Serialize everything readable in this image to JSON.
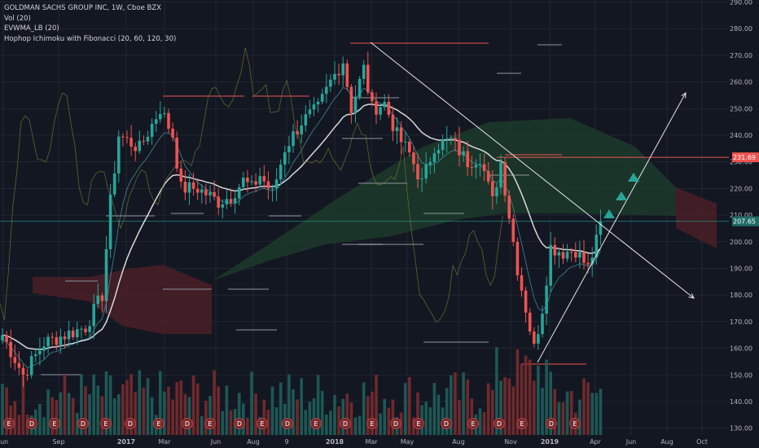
{
  "legend": {
    "symbol": "GOLDMAN SACHS GROUP INC, 1W, Cboe BZX",
    "volume": "Vol (20)",
    "evwma": "EVWMA_LB (20)",
    "ichimoku": "Hophop Ichimoku with Fibonacci (20, 60, 120, 30)"
  },
  "colors": {
    "background": "#131722",
    "grid": "#2a2e39",
    "up": "#26a69a",
    "down": "#ef5350",
    "volume_up": "#1f5f5a",
    "volume_down": "#7a2b2e",
    "evwma": "#d9d9d9",
    "kumo_bull": "#1d3a2a",
    "kumo_bear": "#4a1f26",
    "trendline": "#e6e6e6",
    "signal": "#26a69a",
    "price_badge": "#1e6b66",
    "resistance_badge": "#ef5350"
  },
  "chart_data": {
    "type": "candlestick",
    "y_axis": {
      "min": 125,
      "max": 292,
      "ticks": [
        130,
        140,
        150,
        160,
        170,
        180,
        190,
        200,
        210,
        220,
        230,
        240,
        250,
        260,
        270,
        280,
        290
      ]
    },
    "x_axis": {
      "labels": [
        "Jun",
        "Sep",
        "2017",
        "Mar",
        "Jun",
        "Aug",
        "9",
        "2018",
        "Mar",
        "May",
        "Aug",
        "Nov",
        "2019",
        "Apr",
        "Jun",
        "Aug",
        "Oct"
      ]
    },
    "price_labels": [
      {
        "text": "231.69",
        "value": 231.69,
        "type": "resistance"
      },
      {
        "text": "207.65",
        "value": 207.65,
        "type": "last"
      }
    ],
    "earnings_markers": [
      "E",
      "D",
      "E",
      "D",
      "E",
      "D",
      "E",
      "D",
      "E",
      "D",
      "E",
      "D",
      "E",
      "D",
      "E",
      "D",
      "E",
      "D",
      "E",
      "D",
      "E",
      "D",
      "E"
    ],
    "close_anchors": [
      {
        "week": 0,
        "close": 165
      },
      {
        "week": 5,
        "close": 150
      },
      {
        "week": 10,
        "close": 162
      },
      {
        "week": 15,
        "close": 165
      },
      {
        "week": 20,
        "close": 168
      },
      {
        "week": 24,
        "close": 180
      },
      {
        "week": 26,
        "close": 215
      },
      {
        "week": 28,
        "close": 240
      },
      {
        "week": 33,
        "close": 235
      },
      {
        "week": 38,
        "close": 250
      },
      {
        "week": 41,
        "close": 240
      },
      {
        "week": 43,
        "close": 220
      },
      {
        "week": 47,
        "close": 220
      },
      {
        "week": 52,
        "close": 215
      },
      {
        "week": 55,
        "close": 217
      },
      {
        "week": 58,
        "close": 223
      },
      {
        "week": 60,
        "close": 220
      },
      {
        "week": 62,
        "close": 225
      },
      {
        "week": 65,
        "close": 218
      },
      {
        "week": 68,
        "close": 235
      },
      {
        "week": 72,
        "close": 245
      },
      {
        "week": 76,
        "close": 250
      },
      {
        "week": 79,
        "close": 260
      },
      {
        "week": 82,
        "close": 268
      },
      {
        "week": 84,
        "close": 250
      },
      {
        "week": 87,
        "close": 265
      },
      {
        "week": 89,
        "close": 250
      },
      {
        "week": 92,
        "close": 252
      },
      {
        "week": 95,
        "close": 240
      },
      {
        "week": 98,
        "close": 233
      },
      {
        "week": 101,
        "close": 222
      },
      {
        "week": 104,
        "close": 236
      },
      {
        "week": 108,
        "close": 238
      },
      {
        "week": 112,
        "close": 230
      },
      {
        "week": 115,
        "close": 232
      },
      {
        "week": 118,
        "close": 215
      },
      {
        "week": 120,
        "close": 230
      },
      {
        "week": 122,
        "close": 210
      },
      {
        "week": 124,
        "close": 190
      },
      {
        "week": 126,
        "close": 175
      },
      {
        "week": 128,
        "close": 160
      },
      {
        "week": 130,
        "close": 175
      },
      {
        "week": 132,
        "close": 198
      },
      {
        "week": 135,
        "close": 196
      },
      {
        "week": 138,
        "close": 197
      },
      {
        "week": 141,
        "close": 190
      },
      {
        "week": 143,
        "close": 200
      },
      {
        "week": 144,
        "close": 207.65
      }
    ]
  }
}
